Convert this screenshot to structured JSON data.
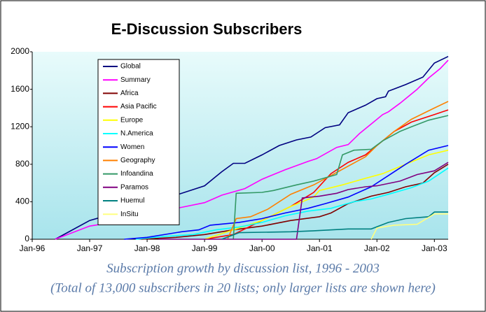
{
  "chart_data": {
    "type": "line",
    "title": "E-Discussion Subscribers",
    "caption": [
      "Subscription growth by discussion list, 1996 - 2003",
      "(Total of 13,000 subscribers in 20 lists; only larger lists are shown here)"
    ],
    "xlim": [
      1996,
      2003.24
    ],
    "xticks": [
      {
        "value": 1996,
        "label": "Jan-96"
      },
      {
        "value": 1997,
        "label": "Jan-97"
      },
      {
        "value": 1998,
        "label": "Jan-98"
      },
      {
        "value": 1999,
        "label": "Jan-99"
      },
      {
        "value": 2000,
        "label": "Jan-00"
      },
      {
        "value": 2001,
        "label": "Jan-01"
      },
      {
        "value": 2002,
        "label": "Jan-02"
      },
      {
        "value": 2003,
        "label": "Jan-03"
      }
    ],
    "ylim": [
      0,
      2000
    ],
    "yticks": [
      0,
      400,
      800,
      1200,
      1600,
      2000
    ],
    "grid": false,
    "legend": "upper left",
    "series": [
      {
        "name": "Global",
        "color": "#000080",
        "x": [
          1996.4,
          1997.0,
          1997.4,
          1997.8,
          1998.0,
          1998.4,
          1998.8,
          1999.0,
          1999.3,
          1999.5,
          1999.7,
          2000.0,
          2000.3,
          2000.6,
          2000.85,
          2001.1,
          2001.35,
          2001.5,
          2001.8,
          2002.0,
          2002.15,
          2002.2,
          2002.5,
          2002.8,
          2003.0,
          2003.24
        ],
        "values": [
          0,
          200,
          270,
          310,
          370,
          450,
          530,
          570,
          720,
          810,
          810,
          900,
          1000,
          1060,
          1090,
          1190,
          1220,
          1350,
          1430,
          1500,
          1520,
          1580,
          1650,
          1730,
          1880,
          1950
        ]
      },
      {
        "name": "Summary",
        "color": "#ff00ff",
        "x": [
          1996.4,
          1997.0,
          1997.4,
          1997.8,
          1998.2,
          1998.6,
          1999.0,
          1999.3,
          1999.7,
          2000.0,
          2000.4,
          2000.8,
          2000.95,
          2001.3,
          2001.5,
          2001.7,
          2001.9,
          2002.1,
          2002.2,
          2002.4,
          2002.7,
          2002.9,
          2003.1,
          2003.24
        ],
        "values": [
          0,
          140,
          180,
          200,
          300,
          340,
          390,
          470,
          540,
          640,
          740,
          830,
          860,
          980,
          1010,
          1130,
          1230,
          1330,
          1360,
          1450,
          1600,
          1720,
          1820,
          1910
        ]
      },
      {
        "name": "Africa",
        "color": "#800000",
        "x": [
          1997.9,
          1998.5,
          1999.0,
          1999.5,
          2000.0,
          2000.5,
          2001.0,
          2001.2,
          2001.5,
          2001.9,
          2002.2,
          2002.5,
          2002.8,
          2003.0,
          2003.24
        ],
        "values": [
          0,
          20,
          50,
          100,
          140,
          200,
          240,
          280,
          380,
          460,
          500,
          560,
          600,
          710,
          800
        ]
      },
      {
        "name": "Asia Pacific",
        "color": "#ff0000",
        "x": [
          1999.0,
          1999.5,
          2000.0,
          2000.5,
          2000.9,
          2001.2,
          2001.5,
          2001.8,
          2002.0,
          2002.3,
          2002.6,
          2003.0,
          2003.24
        ],
        "values": [
          0,
          50,
          200,
          350,
          500,
          700,
          820,
          900,
          1000,
          1150,
          1250,
          1330,
          1380
        ]
      },
      {
        "name": "Europe",
        "color": "#ffff00",
        "x": [
          1999.0,
          1999.5,
          2000.0,
          2000.5,
          2000.9,
          2001.0,
          2001.4,
          2001.8,
          2002.1,
          2002.5,
          2002.9,
          2003.24
        ],
        "values": [
          0,
          100,
          200,
          350,
          450,
          520,
          580,
          650,
          700,
          800,
          900,
          950
        ]
      },
      {
        "name": "N.America",
        "color": "#00ffff",
        "x": [
          1997.8,
          1998.3,
          1998.8,
          1999.2,
          1999.6,
          2000.0,
          2000.4,
          2000.8,
          2001.2,
          2001.6,
          2001.9,
          2002.2,
          2002.6,
          2002.9,
          2003.24
        ],
        "values": [
          0,
          30,
          50,
          100,
          130,
          180,
          250,
          300,
          330,
          400,
          430,
          480,
          550,
          620,
          760
        ]
      },
      {
        "name": "Women",
        "color": "#0000ff",
        "x": [
          1997.6,
          1998.0,
          1998.6,
          1998.9,
          1999.1,
          1999.6,
          2000.0,
          2000.4,
          2000.8,
          2001.1,
          2001.5,
          2001.9,
          2002.2,
          2002.5,
          2002.9,
          2003.24
        ],
        "values": [
          0,
          20,
          80,
          100,
          150,
          180,
          220,
          280,
          330,
          380,
          450,
          560,
          680,
          800,
          950,
          1000
        ]
      },
      {
        "name": "Geography",
        "color": "#ff8000",
        "x": [
          1999.4,
          1999.55,
          1999.8,
          2000.1,
          2000.5,
          2000.9,
          2001.2,
          2001.5,
          2001.8,
          2002.0,
          2002.3,
          2002.6,
          2003.0,
          2003.24
        ],
        "values": [
          0,
          220,
          240,
          320,
          480,
          580,
          680,
          780,
          880,
          1000,
          1150,
          1280,
          1400,
          1470
        ]
      },
      {
        "name": "Infoandina",
        "color": "#339966",
        "x": [
          1999.5,
          1999.55,
          2000.0,
          2000.2,
          2000.6,
          2000.9,
          2001.3,
          2001.4,
          2001.6,
          2001.9,
          2002.1,
          2002.4,
          2002.6,
          2002.9,
          2003.24
        ],
        "values": [
          0,
          490,
          500,
          520,
          580,
          620,
          690,
          900,
          950,
          960,
          1050,
          1150,
          1200,
          1270,
          1320
        ]
      },
      {
        "name": "Paramos",
        "color": "#800080",
        "x": [
          1998.2,
          1999.0,
          2000.6,
          2000.7,
          2001.0,
          2001.3,
          2001.5,
          2001.8,
          2002.0,
          2002.4,
          2002.7,
          2003.0,
          2003.24
        ],
        "values": [
          0,
          0,
          0,
          440,
          460,
          490,
          530,
          560,
          570,
          620,
          690,
          730,
          820
        ]
      },
      {
        "name": "Huemul",
        "color": "#008080",
        "x": [
          1999.3,
          1999.6,
          2000.5,
          2000.9,
          2001.5,
          2001.9,
          2002.2,
          2002.5,
          2002.9,
          2003.0,
          2003.24
        ],
        "values": [
          0,
          70,
          80,
          90,
          110,
          110,
          180,
          220,
          240,
          290,
          290
        ]
      },
      {
        "name": "InSitu",
        "color": "#ffff80",
        "x": [
          2001.9,
          2002.0,
          2002.3,
          2002.7,
          2003.0,
          2003.24
        ],
        "values": [
          0,
          120,
          150,
          160,
          270,
          270
        ]
      }
    ]
  }
}
